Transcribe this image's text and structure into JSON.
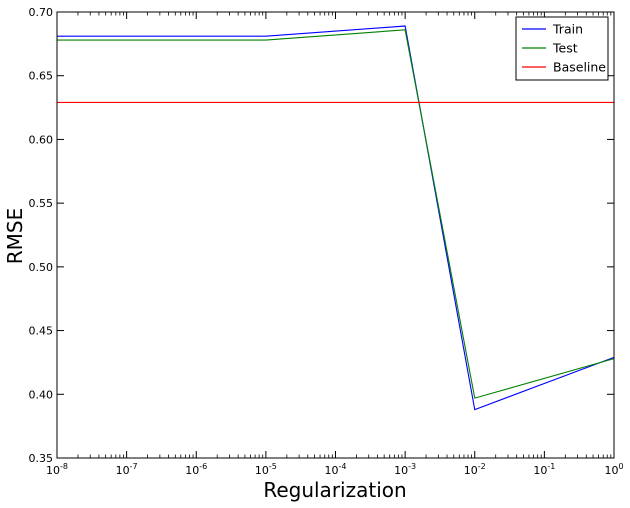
{
  "chart_data": {
    "type": "line",
    "xlabel": "Regularization",
    "ylabel": "RMSE",
    "xscale": "log",
    "xlim": [
      1e-08,
      1
    ],
    "ylim": [
      0.35,
      0.7
    ],
    "x_tick_labels": [
      {
        "base": "10",
        "exp": "-8"
      },
      {
        "base": "10",
        "exp": "-7"
      },
      {
        "base": "10",
        "exp": "-6"
      },
      {
        "base": "10",
        "exp": "-5"
      },
      {
        "base": "10",
        "exp": "-4"
      },
      {
        "base": "10",
        "exp": "-3"
      },
      {
        "base": "10",
        "exp": "-2"
      },
      {
        "base": "10",
        "exp": "-1"
      },
      {
        "base": "10",
        "exp": "0"
      }
    ],
    "y_tick_labels": [
      "0.35",
      "0.40",
      "0.45",
      "0.50",
      "0.55",
      "0.60",
      "0.65",
      "0.70"
    ],
    "legend_position": "top-right",
    "grid": false,
    "series": [
      {
        "name": "Train",
        "color": "#0000ff",
        "x": [
          1e-08,
          1e-05,
          0.001,
          0.01,
          1
        ],
        "y": [
          0.681,
          0.681,
          0.689,
          0.388,
          0.429
        ]
      },
      {
        "name": "Test",
        "color": "#008000",
        "x": [
          1e-08,
          1e-05,
          0.001,
          0.01,
          1
        ],
        "y": [
          0.678,
          0.678,
          0.686,
          0.397,
          0.428
        ]
      },
      {
        "name": "Baseline",
        "color": "#ff0000",
        "x": [
          1e-08,
          1
        ],
        "y": [
          0.629,
          0.629
        ]
      }
    ]
  }
}
